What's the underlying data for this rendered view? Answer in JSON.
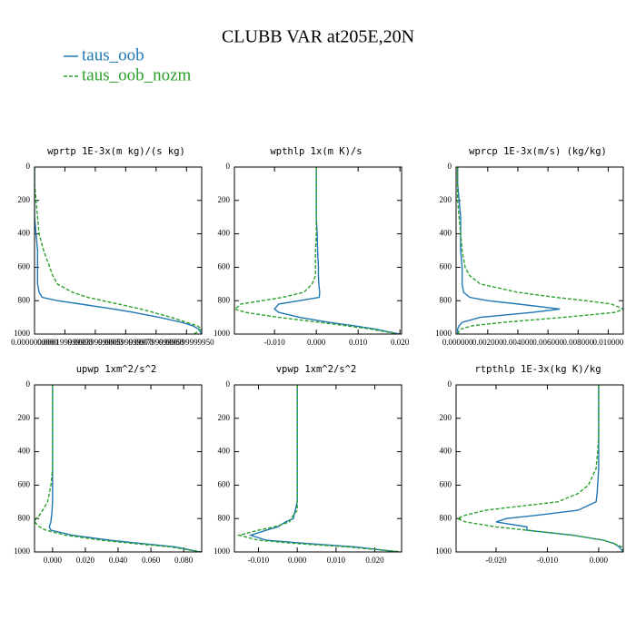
{
  "title": "CLUBB VAR at205E,20N",
  "legend": [
    {
      "name": "taus_oob",
      "color": "#1f77b4",
      "dash": false
    },
    {
      "name": "taus_oob_nozm",
      "color": "#2ca02c",
      "dash": true
    }
  ],
  "chart_data": [
    {
      "type": "line",
      "title": "wprtp  1E-3x(m kg)/(s kg)",
      "y": [
        0,
        100,
        200,
        300,
        400,
        500,
        600,
        650,
        700,
        750,
        780,
        800,
        820,
        850,
        870,
        900,
        930,
        950,
        970,
        1000
      ],
      "ylim": [
        1000,
        0
      ],
      "yticks": [
        0,
        200,
        400,
        600,
        800,
        1000
      ],
      "xlim": [
        0,
        0.0011
      ],
      "xticks": [
        {
          "value": 0,
          "label": "0.0000000000"
        },
        {
          "value": 0.0002,
          "label": "0.000199999990"
        },
        {
          "value": 0.0004,
          "label": "0.000399999980"
        },
        {
          "value": 0.0006,
          "label": "0.000599999970"
        },
        {
          "value": 0.0008,
          "label": "0.000799999960"
        },
        {
          "value": 0.001,
          "label": "0.000999999950"
        }
      ],
      "series": [
        {
          "values": [
            0,
            0,
            0,
            0,
            1e-05,
            2e-05,
            2e-05,
            2e-05,
            2e-05,
            3e-05,
            5e-05,
            0.00015,
            0.0003,
            0.00052,
            0.00065,
            0.00082,
            0.00097,
            0.00104,
            0.00108,
            0.0011
          ]
        },
        {
          "values": [
            0,
            0,
            1e-05,
            2e-05,
            3e-05,
            6e-05,
            0.0001,
            0.00012,
            0.00015,
            0.00025,
            0.00035,
            0.00045,
            0.00055,
            0.0007,
            0.00078,
            0.0009,
            0.001,
            0.00107,
            0.0011,
            0.00105
          ]
        }
      ]
    },
    {
      "type": "line",
      "title": "wpthlp  1x(m K)/s",
      "y": [
        0,
        100,
        200,
        300,
        400,
        500,
        600,
        650,
        700,
        750,
        780,
        800,
        820,
        850,
        870,
        900,
        930,
        950,
        970,
        1000
      ],
      "ylim": [
        1000,
        0
      ],
      "yticks": [
        0,
        200,
        400,
        600,
        800,
        1000
      ],
      "xlim": [
        -0.0196,
        0.0204
      ],
      "xticks": [
        {
          "value": -0.01,
          "label": "-0.010"
        },
        {
          "value": 0,
          "label": "0.000"
        },
        {
          "value": 0.01,
          "label": "0.010"
        },
        {
          "value": 0.02,
          "label": "0.020"
        }
      ],
      "series": [
        {
          "values": [
            0,
            0,
            0,
            0,
            0.0002,
            0.0003,
            0.0005,
            0.0005,
            0.0006,
            0.0008,
            0.0007,
            -0.004,
            -0.009,
            -0.01,
            -0.009,
            -0.004,
            0.003,
            0.009,
            0.014,
            0.02
          ]
        },
        {
          "values": [
            0,
            0,
            0,
            0,
            0,
            -0.0002,
            -0.0002,
            -0.0002,
            -0.001,
            -0.003,
            -0.008,
            -0.013,
            -0.018,
            -0.0195,
            -0.017,
            -0.009,
            0.001,
            0.007,
            0.013,
            0.0195
          ]
        }
      ]
    },
    {
      "type": "line",
      "title": "wprcp  1E-3x(m/s) (kg/kg)",
      "y": [
        0,
        100,
        200,
        300,
        400,
        500,
        600,
        650,
        700,
        750,
        780,
        800,
        820,
        850,
        870,
        900,
        930,
        950,
        970,
        1000
      ],
      "ylim": [
        1000,
        0
      ],
      "yticks": [
        0,
        200,
        400,
        600,
        800,
        1000
      ],
      "xlim": [
        -0.0001,
        0.011
      ],
      "xticks": [
        {
          "value": 0,
          "label": "0.000000"
        },
        {
          "value": 0.002,
          "label": "0.002000"
        },
        {
          "value": 0.004,
          "label": "0.004000"
        },
        {
          "value": 0.006,
          "label": "0.006000"
        },
        {
          "value": 0.008,
          "label": "0.008000"
        },
        {
          "value": 0.01,
          "label": "0.010000"
        }
      ],
      "series": [
        {
          "values": [
            0,
            0,
            0.0001,
            0.0002,
            0.0002,
            0.0002,
            0.0003,
            0.0003,
            0.0003,
            0.0004,
            0.0008,
            0.002,
            0.004,
            0.0068,
            0.005,
            0.0015,
            0.0003,
            0.0001,
            0,
            0
          ]
        },
        {
          "values": [
            0,
            0,
            0,
            0.0001,
            0.0002,
            0.0003,
            0.0005,
            0.0008,
            0.0015,
            0.004,
            0.0065,
            0.0085,
            0.0102,
            0.011,
            0.0105,
            0.007,
            0.003,
            0.001,
            0.0002,
            0
          ]
        }
      ]
    },
    {
      "type": "line",
      "title": "upwp  1xm^2/s^2",
      "y": [
        0,
        100,
        200,
        300,
        400,
        500,
        600,
        650,
        700,
        750,
        780,
        800,
        820,
        850,
        870,
        900,
        930,
        950,
        970,
        1000
      ],
      "ylim": [
        1000,
        0
      ],
      "yticks": [
        0,
        200,
        400,
        600,
        800,
        1000
      ],
      "xlim": [
        -0.011,
        0.091
      ],
      "xticks": [
        {
          "value": 0,
          "label": "0.000"
        },
        {
          "value": 0.02,
          "label": "0.020"
        },
        {
          "value": 0.04,
          "label": "0.040"
        },
        {
          "value": 0.06,
          "label": "0.060"
        },
        {
          "value": 0.08,
          "label": "0.080"
        }
      ],
      "series": [
        {
          "values": [
            0,
            0,
            0,
            0,
            0,
            0,
            0,
            0,
            0,
            -0.0003,
            -0.0005,
            -0.0008,
            -0.001,
            -0.002,
            -0.001,
            0.012,
            0.035,
            0.055,
            0.075,
            0.09
          ]
        },
        {
          "values": [
            0,
            0,
            0,
            0,
            0,
            0,
            -0.001,
            -0.002,
            -0.003,
            -0.006,
            -0.008,
            -0.01,
            -0.011,
            -0.008,
            -0.004,
            0.008,
            0.03,
            0.05,
            0.072,
            0.091
          ]
        }
      ]
    },
    {
      "type": "line",
      "title": "vpwp  1xm^2/s^2",
      "y": [
        0,
        100,
        200,
        300,
        400,
        500,
        600,
        650,
        700,
        750,
        780,
        800,
        820,
        850,
        870,
        900,
        930,
        950,
        970,
        1000
      ],
      "ylim": [
        1000,
        0
      ],
      "yticks": [
        0,
        200,
        400,
        600,
        800,
        1000
      ],
      "xlim": [
        -0.0162,
        0.0269
      ],
      "xticks": [
        {
          "value": -0.01,
          "label": "-0.010"
        },
        {
          "value": 0,
          "label": "0.000"
        },
        {
          "value": 0.01,
          "label": "0.010"
        },
        {
          "value": 0.02,
          "label": "0.020"
        }
      ],
      "series": [
        {
          "values": [
            0,
            0,
            0,
            0,
            0,
            0,
            0,
            0,
            0,
            -0.0005,
            -0.0008,
            -0.001,
            -0.003,
            -0.005,
            -0.008,
            -0.012,
            -0.008,
            0.003,
            0.015,
            0.026
          ]
        },
        {
          "values": [
            0,
            0,
            0,
            0,
            0,
            0,
            0,
            0,
            0,
            0,
            -0.001,
            -0.0015,
            -0.002,
            -0.006,
            -0.01,
            -0.015,
            -0.01,
            0,
            0.013,
            0.027
          ]
        }
      ]
    },
    {
      "type": "line",
      "title": "rtpthlp  1E-3x(kg K)/kg",
      "y": [
        0,
        100,
        200,
        300,
        400,
        500,
        600,
        650,
        700,
        750,
        780,
        800,
        820,
        850,
        870,
        900,
        930,
        950,
        970,
        1000
      ],
      "ylim": [
        1000,
        0
      ],
      "yticks": [
        0,
        200,
        400,
        600,
        800,
        1000
      ],
      "xlim": [
        -0.0278,
        0.0048
      ],
      "xticks": [
        {
          "value": -0.02,
          "label": "-0.020"
        },
        {
          "value": -0.01,
          "label": "-0.010"
        },
        {
          "value": 0,
          "label": "0.000"
        }
      ],
      "series": [
        {
          "values": [
            0,
            0,
            0,
            0,
            0,
            0,
            -0.0002,
            -0.0003,
            -0.0005,
            -0.004,
            -0.012,
            -0.018,
            -0.02,
            -0.014,
            -0.014,
            -0.005,
            0.001,
            0.003,
            0.004,
            0.0048
          ]
        },
        {
          "values": [
            0,
            0,
            0,
            0,
            -0.0002,
            -0.0005,
            -0.002,
            -0.004,
            -0.008,
            -0.022,
            -0.026,
            -0.0275,
            -0.026,
            -0.02,
            -0.014,
            -0.005,
            0.001,
            0.003,
            0.0045,
            0.0048
          ]
        }
      ]
    }
  ]
}
